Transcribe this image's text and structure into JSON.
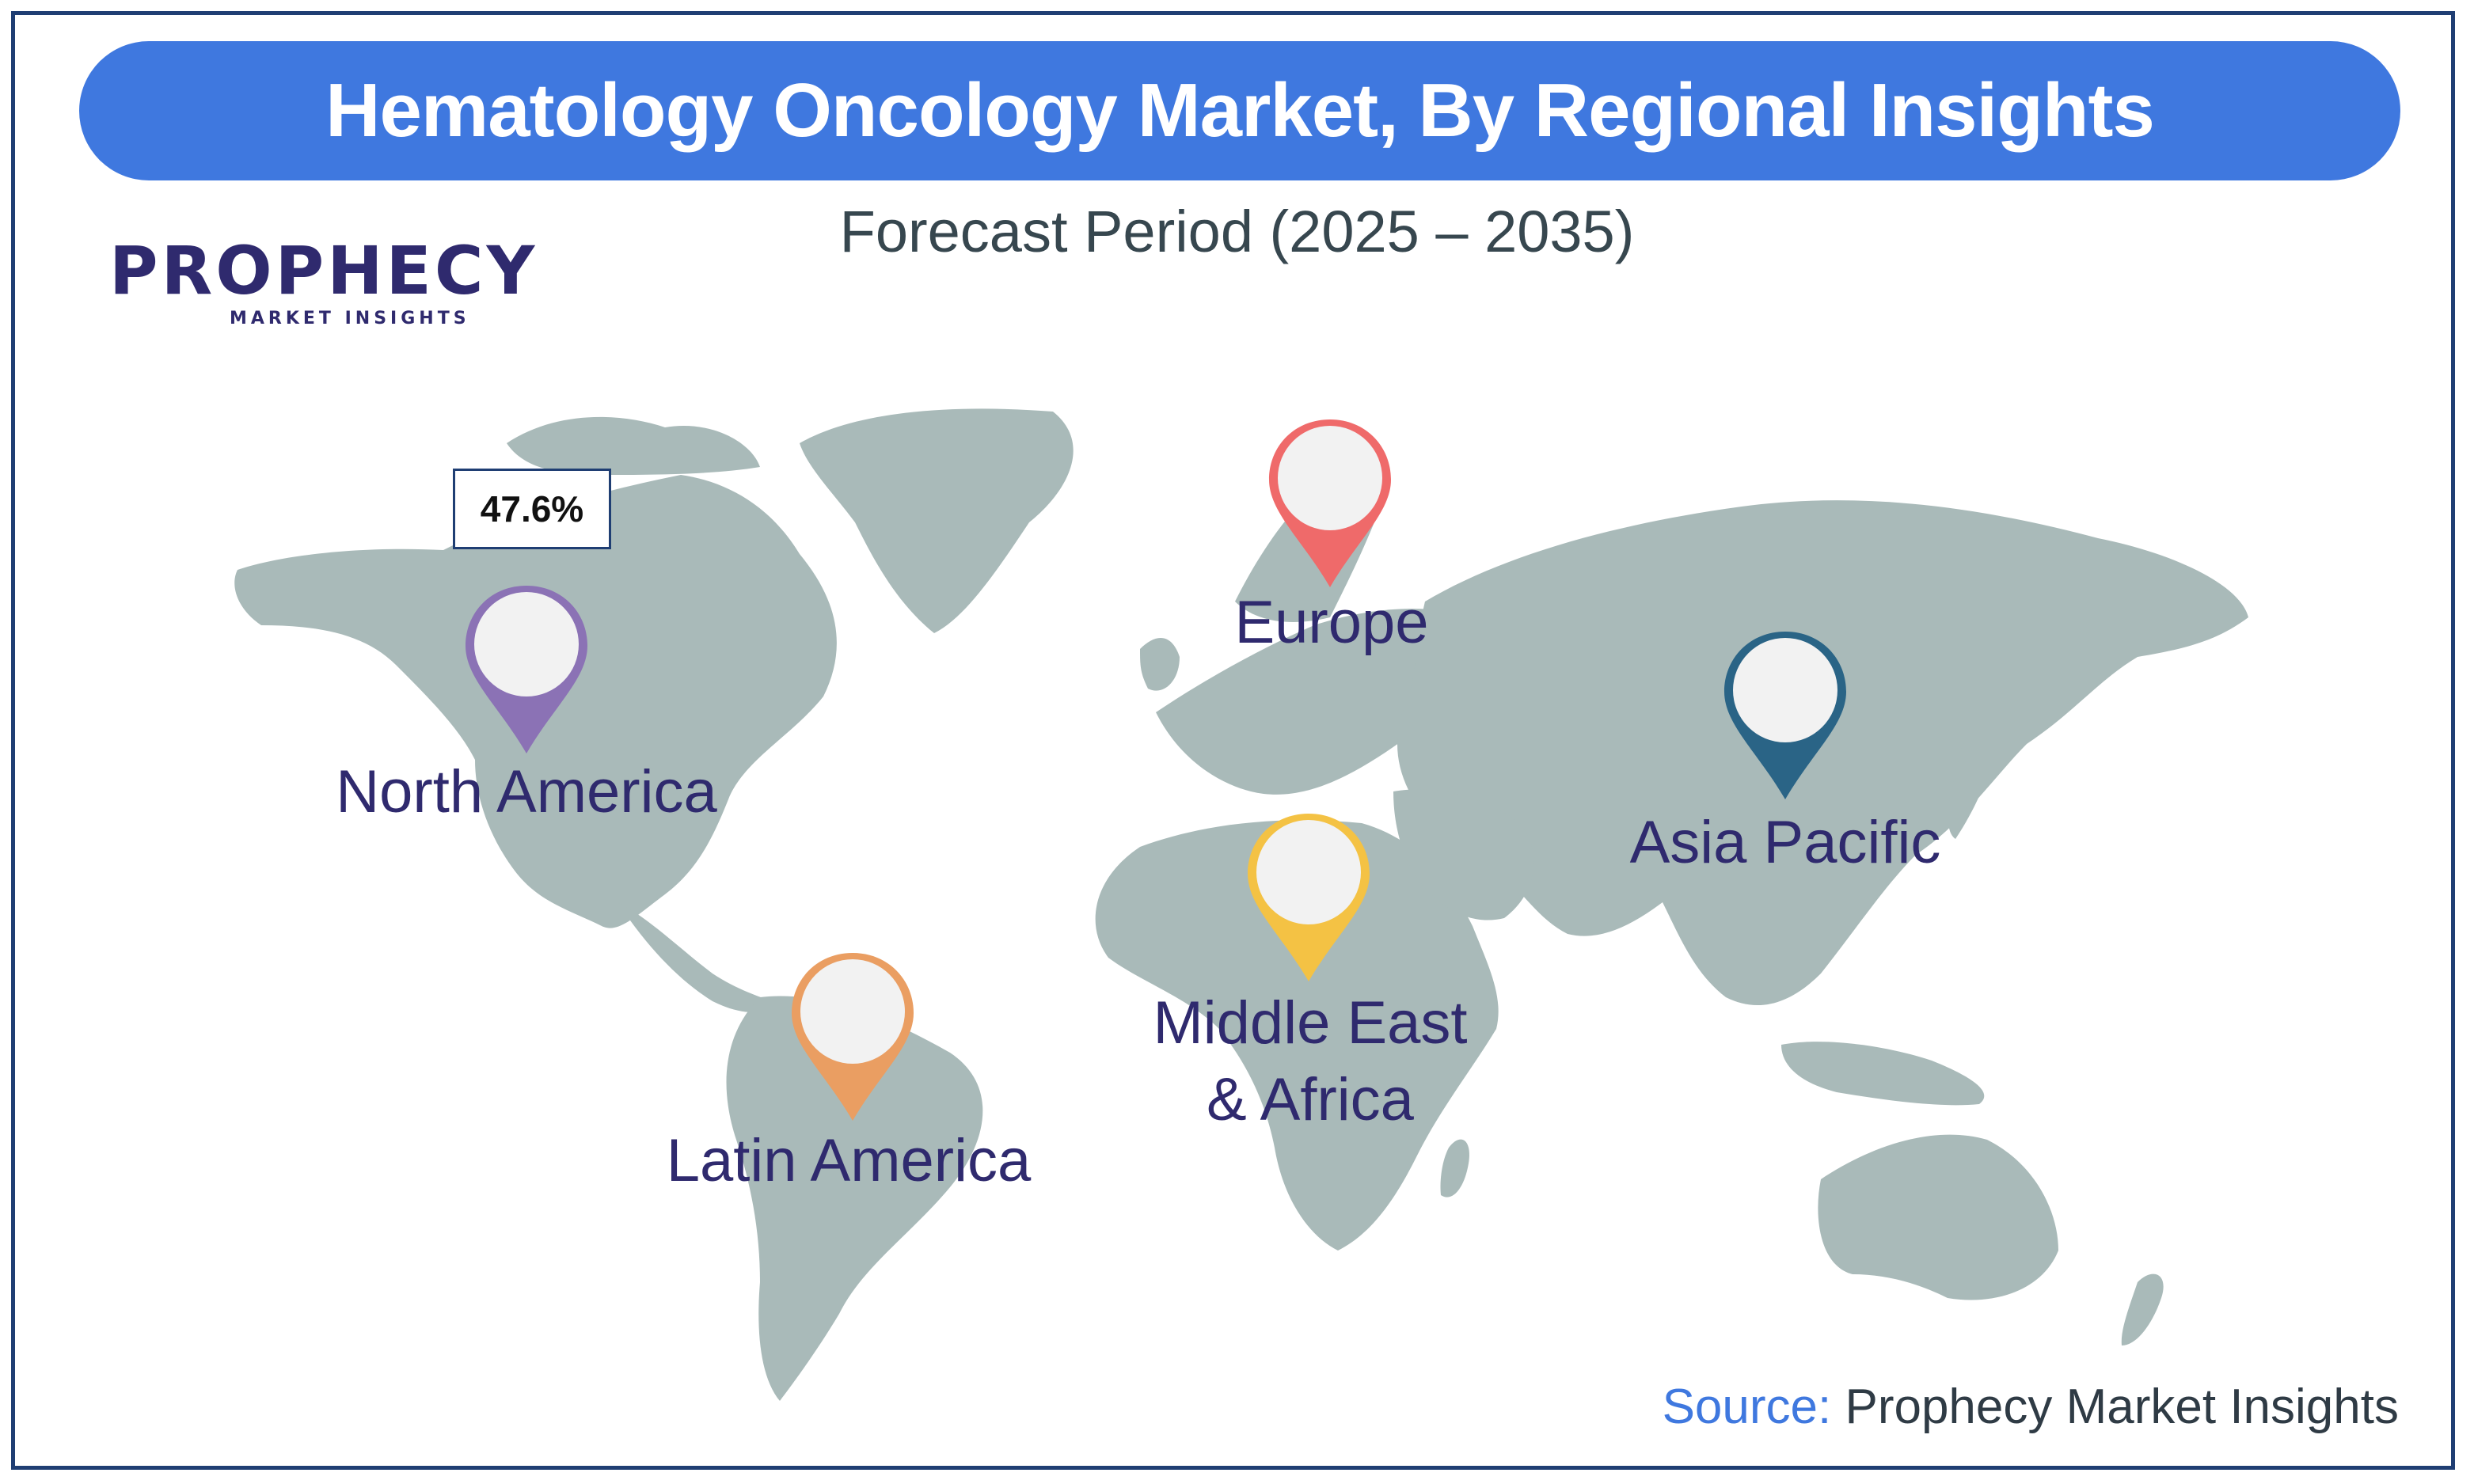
{
  "title": "Hematology Oncology Market, By Regional Insights",
  "subtitle": "Forecast Period (2025 – 2035)",
  "logo": {
    "name": "PROPHECY",
    "tagline": "MARKET INSIGHTS"
  },
  "highlight": {
    "region": "North America",
    "value": "47.6%"
  },
  "regions": [
    {
      "name": "North America",
      "pin_color": "#8b72b5"
    },
    {
      "name": "Europe",
      "pin_color": "#ef6a6a"
    },
    {
      "name": "Asia Pacific",
      "pin_color": "#2a6486"
    },
    {
      "name": "Middle East & Africa",
      "line1": "Middle East",
      "line2": "& Africa",
      "pin_color": "#f4c244"
    },
    {
      "name": "Latin America",
      "pin_color": "#ea9e62"
    }
  ],
  "source": {
    "label": "Source:",
    "value": "Prophecy Market Insights"
  },
  "colors": {
    "title_bar": "#3f78df",
    "land": "#a9bab9",
    "frame": "#1f3e73",
    "text": "#2f2a6e"
  }
}
